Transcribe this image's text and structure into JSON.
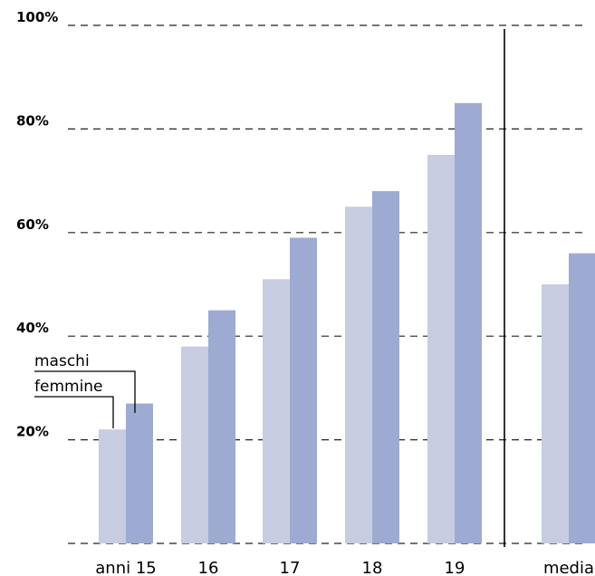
{
  "chart_data": {
    "type": "bar",
    "categories": [
      "anni 15",
      "16",
      "17",
      "18",
      "19",
      "media"
    ],
    "series": [
      {
        "name": "femmine",
        "values": [
          22,
          38,
          51,
          65,
          75,
          50
        ],
        "color": "#c7cce0"
      },
      {
        "name": "maschi",
        "values": [
          27,
          45,
          59,
          68,
          85,
          56
        ],
        "color": "#9dabd2"
      }
    ],
    "yticks": [
      "",
      "20%",
      "40%",
      "60%",
      "80%",
      "100%"
    ],
    "ylim": [
      0,
      100
    ],
    "grid": true,
    "legend": {
      "labels": [
        "maschi",
        "femmine"
      ],
      "placement": "annotation near first bar pair"
    },
    "separator_before_category": "media"
  }
}
